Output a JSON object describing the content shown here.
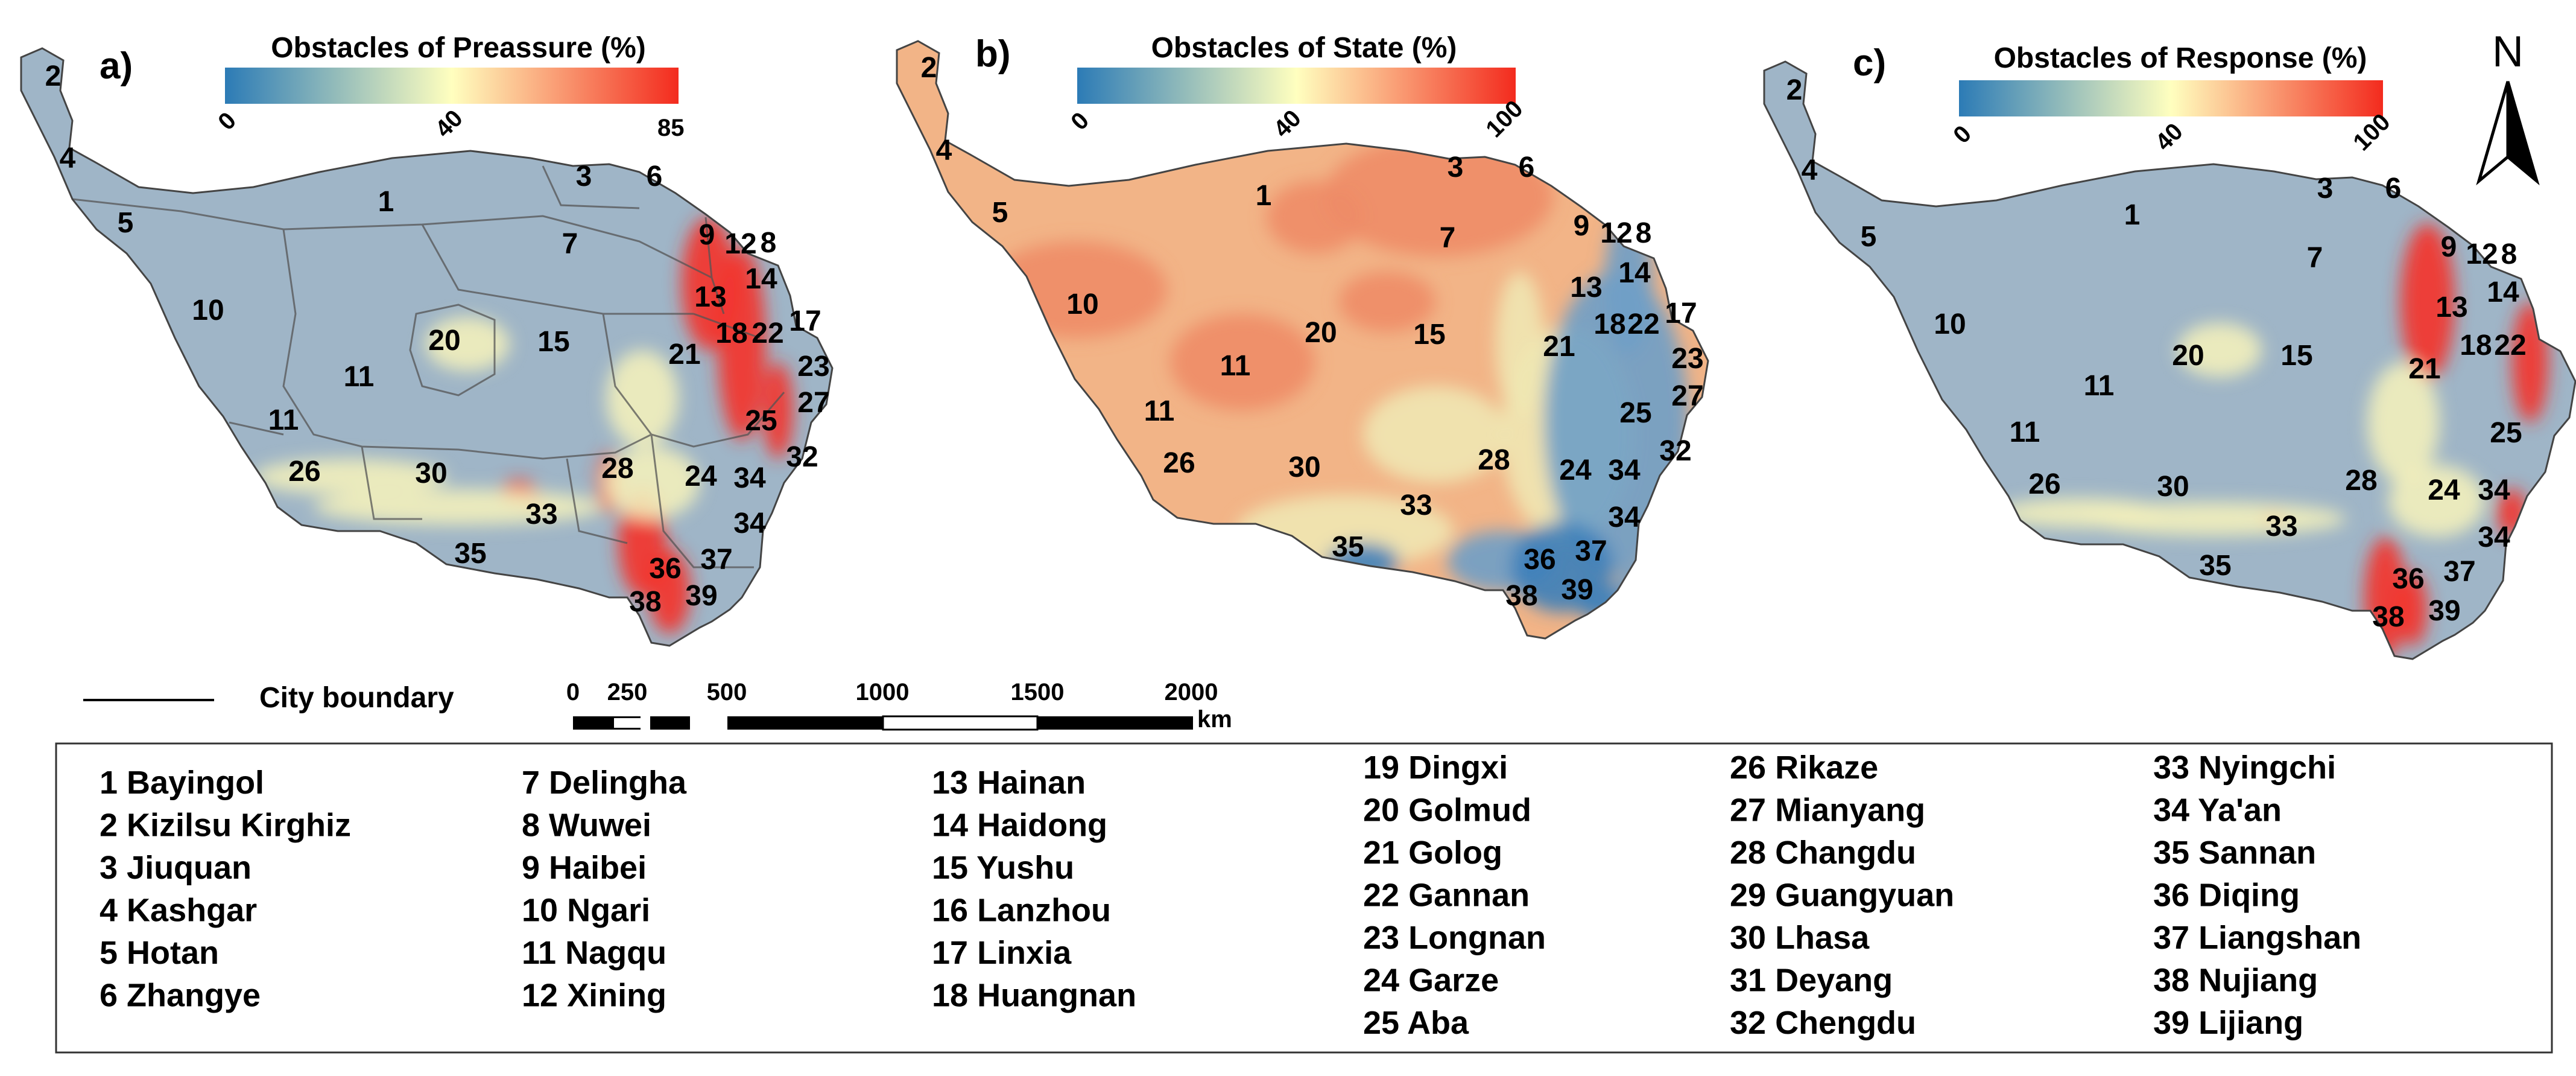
{
  "panels": [
    {
      "label": "a)",
      "colorbar": {
        "title": "Obstacles of Preassure (%)",
        "ticks": [
          "0",
          "40",
          "85"
        ],
        "colors": [
          "#2c7bb6",
          "#ffffbf",
          "#f32b1e"
        ]
      },
      "base_color": "#9fb5c7",
      "hotspots": [
        {
          "color": "#f5302a",
          "spots": [
            [
              1175,
              470,
              45,
              110
            ],
            [
              1230,
              570,
              40,
              160
            ],
            [
              1290,
              680,
              25,
              80
            ],
            [
              1065,
              900,
              40,
              90
            ],
            [
              1110,
              980,
              35,
              70
            ],
            [
              1010,
              800,
              20,
              50
            ],
            [
              860,
              815,
              30,
              20
            ],
            [
              890,
              835,
              15,
              12
            ]
          ]
        },
        {
          "color": "#f2f0bb",
          "spots": [
            [
              1065,
              660,
              60,
              80
            ],
            [
              760,
              840,
              240,
              30
            ],
            [
              1080,
              800,
              80,
              60
            ],
            [
              580,
              790,
              160,
              30
            ],
            [
              775,
              570,
              70,
              45
            ]
          ]
        }
      ]
    },
    {
      "label": "b)",
      "colorbar": {
        "title": "Obstacles of State (%)",
        "ticks": [
          "0",
          "40",
          "100"
        ],
        "colors": [
          "#2c7bb6",
          "#ffffbf",
          "#f32b1e"
        ]
      },
      "base_color": "#f2b487",
      "hotspots": [
        {
          "color": "#ee8c67",
          "spots": [
            [
              1785,
              480,
              150,
              80
            ],
            [
              2385,
              325,
              190,
              100
            ],
            [
              2180,
              360,
              80,
              60
            ],
            [
              2060,
              600,
              120,
              80
            ],
            [
              2300,
              500,
              80,
              50
            ]
          ]
        },
        {
          "color": "#f0e7b2",
          "spots": [
            [
              2600,
              720,
              110,
              180
            ],
            [
              2380,
              720,
              120,
              80
            ],
            [
              2230,
              880,
              180,
              60
            ],
            [
              2520,
              570,
              40,
              120
            ]
          ]
        },
        {
          "color": "#6f9ec6",
          "spots": [
            [
              2700,
              470,
              40,
              120
            ],
            [
              2680,
              700,
              120,
              250
            ],
            [
              2720,
              1000,
              50,
              60
            ],
            [
              2490,
              930,
              90,
              50
            ]
          ]
        },
        {
          "color": "#3b7fba",
          "spots": [
            [
              2590,
              940,
              85,
              75
            ],
            [
              2655,
              1000,
              40,
              30
            ],
            [
              2260,
              930,
              60,
              30
            ]
          ]
        }
      ]
    },
    {
      "label": "c)",
      "colorbar": {
        "title": "Obstacles of Response (%)",
        "ticks": [
          "0",
          "40",
          "100"
        ],
        "colors": [
          "#2c7bb6",
          "#ffffbf",
          "#f32b1e"
        ]
      },
      "base_color": "#9fb5c7",
      "hotspots": [
        {
          "color": "#f5302a",
          "spots": [
            [
              4025,
              500,
              45,
              130
            ],
            [
              4195,
              600,
              30,
              100
            ],
            [
              3955,
              990,
              35,
              100
            ],
            [
              4000,
              1010,
              25,
              60
            ],
            [
              4165,
              850,
              25,
              40
            ],
            [
              3770,
              860,
              20,
              15
            ]
          ]
        },
        {
          "color": "#f2f0bb",
          "spots": [
            [
              3985,
              700,
              60,
              100
            ],
            [
              3670,
              860,
              220,
              28
            ],
            [
              4040,
              830,
              80,
              60
            ],
            [
              3450,
              850,
              140,
              25
            ],
            [
              3680,
              580,
              70,
              45
            ]
          ]
        }
      ]
    }
  ],
  "city_labels": [
    {
      "panel": 0,
      "items": [
        [
          "1",
          640,
          350
        ],
        [
          "2",
          88,
          142
        ],
        [
          "3",
          968,
          308
        ],
        [
          "4",
          112,
          278
        ],
        [
          "5",
          208,
          385
        ],
        [
          "6",
          1085,
          308
        ],
        [
          "7",
          945,
          420
        ],
        [
          "8",
          1274,
          418
        ],
        [
          "9",
          1172,
          405
        ],
        [
          "10",
          345,
          530
        ],
        [
          "11",
          595,
          640
        ],
        [
          "11",
          470,
          712
        ],
        [
          "12",
          1228,
          420
        ],
        [
          "13",
          1178,
          508
        ],
        [
          "14",
          1262,
          478
        ],
        [
          "15",
          918,
          582
        ],
        [
          "17",
          1335,
          548
        ],
        [
          "18",
          1213,
          568
        ],
        [
          "20",
          737,
          580
        ],
        [
          "21",
          1135,
          603
        ],
        [
          "22",
          1273,
          568
        ],
        [
          "23",
          1349,
          623
        ],
        [
          "24",
          1162,
          805
        ],
        [
          "25",
          1262,
          713
        ],
        [
          "26",
          505,
          797
        ],
        [
          "27",
          1349,
          683
        ],
        [
          "28",
          1024,
          792
        ],
        [
          "30",
          715,
          800
        ],
        [
          "32",
          1330,
          773
        ],
        [
          "33",
          898,
          868
        ],
        [
          "34",
          1243,
          808
        ],
        [
          "34",
          1243,
          883
        ],
        [
          "35",
          780,
          933
        ],
        [
          "36",
          1103,
          958
        ],
        [
          "37",
          1188,
          943
        ],
        [
          "38",
          1070,
          1013
        ],
        [
          "39",
          1163,
          1003
        ]
      ]
    },
    {
      "panel": 1,
      "items": [
        [
          "1",
          2095,
          340
        ],
        [
          "2",
          1540,
          128
        ],
        [
          "3",
          2413,
          293
        ],
        [
          "4",
          1565,
          265
        ],
        [
          "5",
          1658,
          368
        ],
        [
          "6",
          2531,
          293
        ],
        [
          "7",
          2400,
          410
        ],
        [
          "8",
          2725,
          402
        ],
        [
          "9",
          2622,
          390
        ],
        [
          "10",
          1795,
          520
        ],
        [
          "11",
          2048,
          622
        ],
        [
          "11",
          1922,
          697
        ],
        [
          "12",
          2680,
          402
        ],
        [
          "13",
          2630,
          492
        ],
        [
          "14",
          2710,
          468
        ],
        [
          "15",
          2370,
          570
        ],
        [
          "17",
          2787,
          535
        ],
        [
          "18",
          2669,
          553
        ],
        [
          "20",
          2190,
          567
        ],
        [
          "21",
          2585,
          590
        ],
        [
          "22",
          2725,
          553
        ],
        [
          "23",
          2798,
          610
        ],
        [
          "24",
          2612,
          795
        ],
        [
          "25",
          2712,
          700
        ],
        [
          "26",
          1955,
          783
        ],
        [
          "27",
          2798,
          672
        ],
        [
          "28",
          2477,
          778
        ],
        [
          "30",
          2163,
          790
        ],
        [
          "32",
          2778,
          763
        ],
        [
          "33",
          2348,
          853
        ],
        [
          "34",
          2693,
          795
        ],
        [
          "34",
          2693,
          873
        ],
        [
          "35",
          2235,
          922
        ],
        [
          "36",
          2553,
          943
        ],
        [
          "37",
          2638,
          929
        ],
        [
          "38",
          2523,
          1003
        ],
        [
          "39",
          2615,
          993
        ]
      ]
    },
    {
      "panel": 2,
      "items": [
        [
          "1",
          3535,
          372
        ],
        [
          "2",
          2975,
          165
        ],
        [
          "3",
          3855,
          328
        ],
        [
          "4",
          3000,
          298
        ],
        [
          "5",
          3098,
          408
        ],
        [
          "6",
          3968,
          328
        ],
        [
          "7",
          3838,
          443
        ],
        [
          "8",
          4160,
          437
        ],
        [
          "9",
          4060,
          425
        ],
        [
          "10",
          3233,
          553
        ],
        [
          "11",
          3480,
          655
        ],
        [
          "11",
          3357,
          732
        ],
        [
          "12",
          4115,
          437
        ],
        [
          "13",
          4065,
          525
        ],
        [
          "14",
          4150,
          500
        ],
        [
          "15",
          3808,
          605
        ],
        [
          "18",
          4105,
          588
        ],
        [
          "20",
          3628,
          605
        ],
        [
          "21",
          4020,
          627
        ],
        [
          "22",
          4162,
          588
        ],
        [
          "24",
          4052,
          828
        ],
        [
          "25",
          4155,
          733
        ],
        [
          "26",
          3390,
          818
        ],
        [
          "28",
          3915,
          812
        ],
        [
          "30",
          3603,
          822
        ],
        [
          "33",
          3783,
          888
        ],
        [
          "34",
          4135,
          828
        ],
        [
          "34",
          4135,
          906
        ],
        [
          "35",
          3673,
          953
        ],
        [
          "36",
          3993,
          975
        ],
        [
          "37",
          4078,
          963
        ],
        [
          "38",
          3960,
          1038
        ],
        [
          "39",
          4053,
          1028
        ]
      ]
    }
  ],
  "city_boundary_label": "City boundary",
  "scale_bar": {
    "ticks": [
      "0",
      "250",
      "500",
      "1000",
      "1500",
      "2000"
    ],
    "unit": "km"
  },
  "north_arrow_label": "N",
  "legend_columns": [
    [
      "1 Bayingol",
      "2 Kizilsu Kirghiz",
      "3 Jiuquan",
      "4 Kashgar",
      "5 Hotan",
      "6 Zhangye"
    ],
    [
      "7 Delingha",
      "8 Wuwei",
      "9 Haibei",
      "10 Ngari",
      "11 Nagqu",
      "12 Xining"
    ],
    [
      "13 Hainan",
      "14 Haidong",
      "15 Yushu",
      "16 Lanzhou",
      "17 Linxia",
      "18 Huangnan"
    ],
    [
      "19 Dingxi",
      "20 Golmud",
      "21 Golog",
      "22 Gannan",
      "23 Longnan",
      "24 Garze",
      "25 Aba"
    ],
    [
      "26 Rikaze",
      "27 Mianyang",
      "28 Changdu",
      "29 Guangyuan",
      "30 Lhasa",
      "31 Deyang",
      "32 Chengdu"
    ],
    [
      "33 Nyingchi",
      "34 Ya'an",
      "35 Sannan",
      "36 Diqing",
      "37 Liangshan",
      "38 Nujiang",
      "39 Lijiang"
    ]
  ]
}
